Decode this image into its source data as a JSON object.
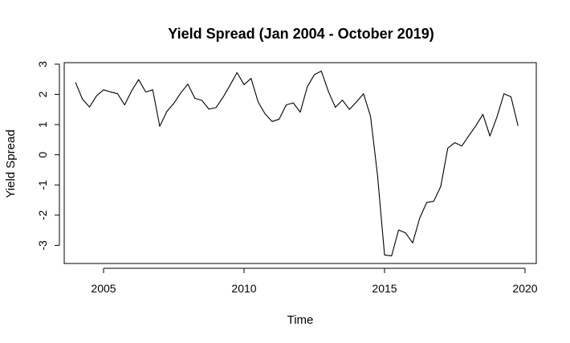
{
  "chart_data": {
    "type": "line",
    "title": "Yield Spread (Jan 2004 - October 2019)",
    "xlabel": "Time",
    "ylabel": "Yield Spread",
    "xlim": [
      2003.6,
      2020.4
    ],
    "ylim": [
      -3.6,
      3.05
    ],
    "xticks": [
      2005,
      2010,
      2015,
      2020
    ],
    "xtick_labels": [
      "2005",
      "2010",
      "2015",
      "2020"
    ],
    "yticks": [
      -3,
      -2,
      -1,
      0,
      1,
      2,
      3
    ],
    "ytick_labels": [
      "-3",
      "-2",
      "-1",
      "0",
      "1",
      "2",
      "3"
    ],
    "grid": false,
    "series": [
      {
        "x": [
          2004.0,
          2004.25,
          2004.5,
          2004.75,
          2005.0,
          2005.25,
          2005.5,
          2005.75,
          2006.0,
          2006.25,
          2006.5,
          2006.75,
          2007.0,
          2007.25,
          2007.5,
          2007.75,
          2008.0,
          2008.25,
          2008.5,
          2008.75,
          2009.0,
          2009.25,
          2009.5,
          2009.75,
          2010.0,
          2010.25,
          2010.5,
          2010.75,
          2011.0,
          2011.25,
          2011.5,
          2011.75,
          2012.0,
          2012.25,
          2012.5,
          2012.75,
          2013.0,
          2013.25,
          2013.5,
          2013.75,
          2014.0,
          2014.25,
          2014.5,
          2014.75,
          2015.0,
          2015.25,
          2015.5,
          2015.75,
          2016.0,
          2016.25,
          2016.5,
          2016.75,
          2017.0,
          2017.25,
          2017.5,
          2017.75,
          2018.0,
          2018.25,
          2018.5,
          2018.75,
          2019.0,
          2019.25,
          2019.5,
          2019.75
        ],
        "values": [
          2.4,
          1.84,
          1.58,
          1.95,
          2.15,
          2.08,
          2.02,
          1.65,
          2.12,
          2.49,
          2.08,
          2.15,
          0.94,
          1.43,
          1.7,
          2.05,
          2.34,
          1.87,
          1.8,
          1.51,
          1.56,
          1.9,
          2.3,
          2.72,
          2.32,
          2.53,
          1.75,
          1.35,
          1.1,
          1.18,
          1.65,
          1.72,
          1.41,
          2.25,
          2.65,
          2.77,
          2.1,
          1.57,
          1.81,
          1.5,
          1.75,
          2.02,
          1.28,
          -0.68,
          -3.32,
          -3.35,
          -2.49,
          -2.59,
          -2.92,
          -2.1,
          -1.58,
          -1.54,
          -1.05,
          0.22,
          0.4,
          0.29,
          0.63,
          0.96,
          1.34,
          0.62,
          1.25,
          2.02,
          1.92,
          0.96
        ]
      }
    ]
  }
}
